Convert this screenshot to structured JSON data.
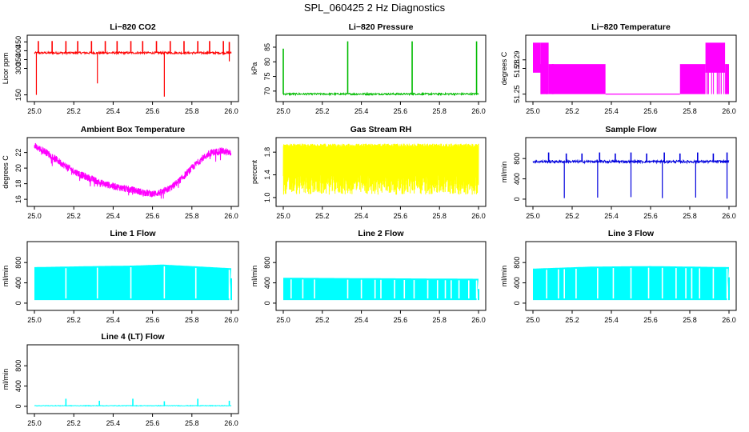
{
  "page": {
    "title": "SPL_060425  2 Hz Diagnostics"
  },
  "chart_data": [
    {
      "type": "line",
      "title": "Li−820 CO2",
      "ylabel": "Licor ppm",
      "xlim": [
        25.0,
        26.0
      ],
      "ylim": [
        130,
        470
      ],
      "xticks": [
        "25.0",
        "25.2",
        "25.4",
        "25.6",
        "25.8",
        "26.0"
      ],
      "yticks": [
        "150",
        "300",
        "350",
        "400",
        "450"
      ],
      "color": "#ff0000",
      "series": [
        {
          "base": 388,
          "noise": 6,
          "spikes_up": [
            [
              25.02,
              455
            ],
            [
              25.09,
              455
            ],
            [
              25.16,
              455
            ],
            [
              25.22,
              455
            ],
            [
              25.29,
              455
            ],
            [
              25.36,
              455
            ],
            [
              25.42,
              455
            ],
            [
              25.49,
              455
            ],
            [
              25.55,
              455
            ],
            [
              25.62,
              455
            ],
            [
              25.69,
              455
            ],
            [
              25.76,
              455
            ],
            [
              25.83,
              455
            ],
            [
              25.89,
              455
            ],
            [
              25.96,
              455
            ],
            [
              25.99,
              450
            ]
          ],
          "spikes_down": [
            [
              25.01,
              150
            ],
            [
              25.32,
              215
            ],
            [
              25.66,
              140
            ],
            [
              25.99,
              340
            ]
          ]
        }
      ]
    },
    {
      "type": "line",
      "title": "Li−820 Pressure",
      "ylabel": "kPa",
      "xlim": [
        25.0,
        26.0
      ],
      "ylim": [
        67.5,
        88
      ],
      "xticks": [
        "25.0",
        "25.2",
        "25.4",
        "25.6",
        "25.8",
        "26.0"
      ],
      "yticks": [
        "70",
        "75",
        "80",
        "85"
      ],
      "color": "#00bb00",
      "series": [
        {
          "base": 69,
          "noise": 0.3,
          "spikes_up": [
            [
              25.0,
              84.5
            ],
            [
              25.33,
              87
            ],
            [
              25.66,
              87
            ],
            [
              25.99,
              87
            ]
          ],
          "spikes_down": []
        }
      ]
    },
    {
      "type": "line",
      "title": "Li−820 Temperature",
      "ylabel": "degrees C",
      "xlim": [
        25.0,
        26.0
      ],
      "ylim": [
        51.245,
        51.315
      ],
      "xticks": [
        "25.0",
        "25.2",
        "25.4",
        "25.6",
        "25.8",
        "26.0"
      ],
      "yticks": [
        "51.25",
        "51.28",
        "51.29"
      ],
      "color": "#ff00ff",
      "levels": [
        51.25,
        51.275,
        51.3
      ],
      "segments": [
        [
          25.0,
          25.04,
          51.275,
          51.31
        ],
        [
          25.04,
          25.08,
          51.25,
          51.31
        ],
        [
          25.08,
          25.37,
          51.25,
          51.285
        ],
        [
          25.37,
          25.75,
          51.25,
          51.25
        ],
        [
          25.75,
          25.88,
          51.25,
          51.285
        ],
        [
          25.88,
          25.98,
          51.275,
          51.31
        ],
        [
          25.98,
          26.0,
          51.25,
          51.285
        ]
      ]
    },
    {
      "type": "line",
      "title": "Ambient Box Temperature",
      "ylabel": "degrees C",
      "xlim": [
        25.0,
        26.0
      ],
      "ylim": [
        15.5,
        23.5
      ],
      "xticks": [
        "25.0",
        "25.2",
        "25.4",
        "25.6",
        "25.8",
        "26.0"
      ],
      "yticks": [
        "16",
        "18",
        "20",
        "22"
      ],
      "color": "#ff00ff",
      "curve": [
        [
          25.0,
          22.8
        ],
        [
          25.05,
          22.2
        ],
        [
          25.1,
          21.3
        ],
        [
          25.15,
          20.4
        ],
        [
          25.2,
          19.6
        ],
        [
          25.25,
          19.0
        ],
        [
          25.3,
          18.5
        ],
        [
          25.35,
          18.0
        ],
        [
          25.4,
          17.7
        ],
        [
          25.45,
          17.4
        ],
        [
          25.5,
          17.2
        ],
        [
          25.55,
          16.9
        ],
        [
          25.6,
          16.7
        ],
        [
          25.65,
          16.9
        ],
        [
          25.7,
          17.6
        ],
        [
          25.75,
          18.7
        ],
        [
          25.8,
          20.0
        ],
        [
          25.85,
          21.2
        ],
        [
          25.9,
          22.0
        ],
        [
          25.95,
          22.2
        ],
        [
          26.0,
          21.9
        ]
      ],
      "band": 0.45
    },
    {
      "type": "line",
      "title": "Gas Stream RH",
      "ylabel": "percent",
      "xlim": [
        25.0,
        26.0
      ],
      "ylim": [
        0.9,
        2.0
      ],
      "xticks": [
        "25.0",
        "25.2",
        "25.4",
        "25.6",
        "25.8",
        "26.0"
      ],
      "yticks": [
        "1.0",
        "1.4",
        "1.8"
      ],
      "color": "#ffff00",
      "band_range": [
        1.05,
        1.95
      ],
      "core_range": [
        1.4,
        1.85
      ]
    },
    {
      "type": "line",
      "title": "Sample Flow",
      "ylabel": "ml/min",
      "xlim": [
        25.0,
        26.0
      ],
      "ylim": [
        -80,
        1150
      ],
      "xticks": [
        "25.0",
        "25.2",
        "25.4",
        "25.6",
        "25.8",
        "26.0"
      ],
      "yticks": [
        "0",
        "400",
        "800"
      ],
      "color": "#0000dd",
      "series": [
        {
          "base": 740,
          "noise": 25,
          "spikes_up": [
            [
              25.08,
              920
            ],
            [
              25.17,
              900
            ],
            [
              25.25,
              900
            ],
            [
              25.34,
              920
            ],
            [
              25.42,
              900
            ],
            [
              25.5,
              920
            ],
            [
              25.58,
              900
            ],
            [
              25.67,
              920
            ],
            [
              25.75,
              900
            ],
            [
              25.84,
              920
            ],
            [
              25.92,
              900
            ],
            [
              25.99,
              920
            ]
          ],
          "spikes_down": [
            [
              25.16,
              20
            ],
            [
              25.33,
              30
            ],
            [
              25.5,
              40
            ],
            [
              25.66,
              20
            ],
            [
              25.83,
              30
            ],
            [
              25.99,
              10
            ]
          ]
        }
      ]
    },
    {
      "type": "area",
      "title": "Line 1 Flow",
      "ylabel": "ml/min",
      "xlim": [
        25.0,
        26.0
      ],
      "ylim": [
        -80,
        1150
      ],
      "xticks": [
        "25.0",
        "25.2",
        "25.4",
        "25.6",
        "25.8",
        "26.0"
      ],
      "yticks": [
        "0",
        "400",
        "800"
      ],
      "color": "#00ffff",
      "band": [
        [
          25.0,
          710
        ],
        [
          25.3,
          730
        ],
        [
          25.5,
          740
        ],
        [
          25.65,
          760
        ],
        [
          25.8,
          730
        ],
        [
          25.99,
          690
        ]
      ],
      "low": 60,
      "gaps": [
        25.16,
        25.32,
        25.49,
        25.66,
        25.82,
        25.99
      ]
    },
    {
      "type": "area",
      "title": "Line 2 Flow",
      "ylabel": "ml/min",
      "xlim": [
        25.0,
        26.0
      ],
      "ylim": [
        -80,
        1150
      ],
      "xticks": [
        "25.0",
        "25.2",
        "25.4",
        "25.6",
        "25.8",
        "26.0"
      ],
      "yticks": [
        "0",
        "400",
        "800"
      ],
      "color": "#00ffff",
      "band": [
        [
          25.0,
          500
        ],
        [
          25.5,
          490
        ],
        [
          26.0,
          480
        ]
      ],
      "low": 60,
      "gaps": [
        25.04,
        25.1,
        25.16,
        25.33,
        25.4,
        25.47,
        25.5,
        25.57,
        25.62,
        25.67,
        25.74,
        25.79,
        25.83,
        25.86,
        25.9,
        25.95,
        25.99
      ]
    },
    {
      "type": "area",
      "title": "Line 3 Flow",
      "ylabel": "ml/min",
      "xlim": [
        25.0,
        26.0
      ],
      "ylim": [
        -80,
        1150
      ],
      "xticks": [
        "25.0",
        "25.2",
        "25.4",
        "25.6",
        "25.8",
        "26.0"
      ],
      "yticks": [
        "0",
        "400",
        "800"
      ],
      "color": "#00ffff",
      "band": [
        [
          25.0,
          680
        ],
        [
          25.3,
          720
        ],
        [
          25.6,
          730
        ],
        [
          26.0,
          710
        ]
      ],
      "low": 60,
      "gaps": [
        25.07,
        25.13,
        25.16,
        25.22,
        25.33,
        25.41,
        25.5,
        25.59,
        25.66,
        25.73,
        25.78,
        25.81,
        25.85,
        25.92,
        25.99
      ]
    },
    {
      "type": "line",
      "title": "Line 4 (LT) Flow",
      "ylabel": "ml/min",
      "xlim": [
        25.0,
        26.0
      ],
      "ylim": [
        -80,
        1150
      ],
      "xticks": [
        "25.0",
        "25.2",
        "25.4",
        "25.6",
        "25.8",
        "26.0"
      ],
      "yticks": [
        "0",
        "400",
        "800"
      ],
      "color": "#00ffff",
      "series": [
        {
          "base": 12,
          "noise": 6,
          "spikes_up": [
            [
              25.16,
              150
            ],
            [
              25.33,
              110
            ],
            [
              25.5,
              150
            ],
            [
              25.66,
              100
            ],
            [
              25.83,
              150
            ],
            [
              25.99,
              110
            ]
          ],
          "spikes_down": []
        }
      ]
    }
  ]
}
